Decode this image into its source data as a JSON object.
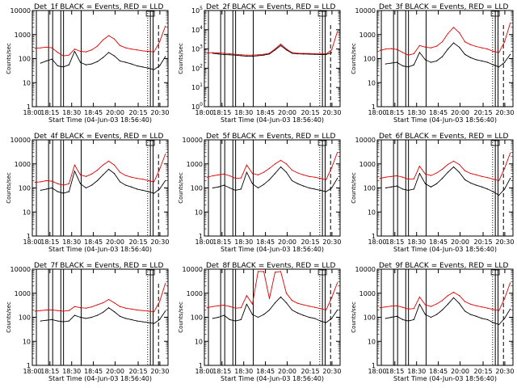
{
  "page": {
    "panel_title_suffix": "BLACK = Events, RED = LLD",
    "ylabel": "Counts/sec",
    "xlabel": "Start Time (04-Jun-03 18:56:40)",
    "x_ticks": [
      "18:00",
      "18:15",
      "18:30",
      "18:45",
      "20:00",
      "20:15",
      "20:30"
    ]
  },
  "colors": {
    "events": "#000000",
    "lld": "#e00000",
    "axes": "#000000"
  },
  "chart_data": [
    {
      "type": "line",
      "detector": "Det_1f",
      "title": "Det_1f BLACK = Events, RED = LLD",
      "xlabel": "Start Time (04-Jun-03 18:56:40)",
      "ylabel": "Counts/sec",
      "y_scale": "log",
      "ylim": [
        1,
        10000
      ],
      "y_tick_labels": [
        "1",
        "10",
        "100",
        "1000",
        "10000"
      ],
      "x_tick_labels": [
        "18:00",
        "18:15",
        "18:30",
        "18:45",
        "20:00",
        "20:15",
        "20:30"
      ],
      "series": [
        {
          "name": "Events",
          "values": [
            null,
            65,
            80,
            95,
            50,
            45,
            55,
            200,
            70,
            55,
            60,
            75,
            110,
            180,
            130,
            80,
            70,
            60,
            50,
            45,
            40,
            35,
            50,
            120
          ]
        },
        {
          "name": "LLD",
          "values": [
            270,
            280,
            300,
            280,
            180,
            130,
            140,
            250,
            200,
            190,
            230,
            330,
            600,
            900,
            650,
            350,
            280,
            250,
            230,
            210,
            200,
            190,
            500,
            2200
          ]
        }
      ]
    },
    {
      "type": "line",
      "detector": "Det_2f",
      "title": "Det_2f BLACK = Events, RED = LLD",
      "xlabel": "Start Time (04-Jun-03 18:56:40)",
      "ylabel": "Counts/sec",
      "y_scale": "log",
      "ylim": [
        1,
        100000
      ],
      "y_tick_labels": [
        "10^0",
        "10^1",
        "10^2",
        "10^3",
        "10^4",
        "10^5"
      ],
      "x_tick_labels": [
        "18:00",
        "18:15",
        "18:30",
        "18:45",
        "20:00",
        "20:15",
        "20:30"
      ],
      "series": [
        {
          "name": "Events",
          "values": [
            null,
            600,
            550,
            520,
            500,
            480,
            450,
            420,
            420,
            450,
            480,
            550,
            900,
            1500,
            900,
            600,
            560,
            550,
            540,
            530,
            520,
            520,
            650,
            null
          ]
        },
        {
          "name": "LLD",
          "values": [
            620,
            640,
            620,
            600,
            560,
            530,
            500,
            480,
            480,
            500,
            530,
            600,
            1000,
            1800,
            1000,
            650,
            600,
            590,
            580,
            570,
            560,
            560,
            900,
            8000
          ]
        }
      ]
    },
    {
      "type": "line",
      "detector": "Det_3f",
      "title": "Det_3f BLACK = Events, RED = LLD",
      "xlabel": "Start Time (04-Jun-03 18:56:40)",
      "ylabel": "Counts/sec",
      "y_scale": "log",
      "ylim": [
        1,
        10000
      ],
      "y_tick_labels": [
        "1",
        "10",
        "100",
        "1000",
        "10000"
      ],
      "x_tick_labels": [
        "18:00",
        "18:15",
        "18:30",
        "18:45",
        "20:00",
        "20:15",
        "20:30"
      ],
      "series": [
        {
          "name": "Events",
          "values": [
            null,
            60,
            65,
            70,
            50,
            45,
            55,
            180,
            90,
            70,
            80,
            120,
            250,
            450,
            300,
            150,
            110,
            90,
            80,
            70,
            55,
            45,
            70,
            150
          ]
        },
        {
          "name": "LLD",
          "values": [
            220,
            250,
            260,
            240,
            180,
            140,
            160,
            350,
            300,
            280,
            330,
            500,
            1100,
            2000,
            1200,
            500,
            380,
            320,
            280,
            250,
            200,
            180,
            500,
            3000
          ]
        }
      ]
    },
    {
      "type": "line",
      "detector": "Det_4f",
      "title": "Det_4f BLACK = Events, RED = LLD",
      "xlabel": "Start Time (04-Jun-03 18:56:40)",
      "ylabel": "Counts/sec",
      "y_scale": "log",
      "ylim": [
        1,
        10000
      ],
      "y_tick_labels": [
        "1",
        "10",
        "100",
        "1000",
        "10000"
      ],
      "x_tick_labels": [
        "18:00",
        "18:15",
        "18:30",
        "18:45",
        "20:00",
        "20:15",
        "20:30"
      ],
      "series": [
        {
          "name": "Events",
          "values": [
            null,
            80,
            90,
            100,
            70,
            60,
            70,
            500,
            150,
            100,
            130,
            200,
            350,
            600,
            400,
            180,
            130,
            110,
            90,
            80,
            70,
            60,
            90,
            200
          ]
        },
        {
          "name": "LLD",
          "values": [
            170,
            180,
            200,
            190,
            150,
            130,
            150,
            900,
            350,
            300,
            380,
            550,
            900,
            1300,
            900,
            450,
            330,
            280,
            250,
            230,
            200,
            180,
            600,
            2500
          ]
        }
      ]
    },
    {
      "type": "line",
      "detector": "Det_5f",
      "title": "Det_5f BLACK = Events, RED = LLD",
      "xlabel": "Start Time (04-Jun-03 18:56:40)",
      "ylabel": "Counts/sec",
      "y_scale": "log",
      "ylim": [
        1,
        10000
      ],
      "y_tick_labels": [
        "1",
        "10",
        "100",
        "1000",
        "10000"
      ],
      "x_tick_labels": [
        "18:00",
        "18:15",
        "18:30",
        "18:45",
        "20:00",
        "20:15",
        "20:30"
      ],
      "series": [
        {
          "name": "Events",
          "values": [
            null,
            100,
            110,
            130,
            100,
            80,
            90,
            450,
            150,
            100,
            140,
            220,
            400,
            750,
            450,
            200,
            150,
            120,
            100,
            90,
            80,
            70,
            100,
            250
          ]
        },
        {
          "name": "LLD",
          "values": [
            280,
            320,
            350,
            380,
            320,
            250,
            260,
            900,
            400,
            350,
            450,
            650,
            1000,
            1400,
            1000,
            550,
            420,
            350,
            300,
            280,
            250,
            220,
            700,
            3000
          ]
        }
      ]
    },
    {
      "type": "line",
      "detector": "Det_6f",
      "title": "Det_6f BLACK = Events, RED = LLD",
      "xlabel": "Start Time (04-Jun-03 18:56:40)",
      "ylabel": "Counts/sec",
      "y_scale": "log",
      "ylim": [
        1,
        10000
      ],
      "y_tick_labels": [
        "1",
        "10",
        "100",
        "1000",
        "10000"
      ],
      "x_tick_labels": [
        "18:00",
        "18:15",
        "18:30",
        "18:45",
        "20:00",
        "20:15",
        "20:30"
      ],
      "series": [
        {
          "name": "Events",
          "values": [
            null,
            100,
            110,
            120,
            90,
            80,
            90,
            400,
            150,
            110,
            150,
            250,
            450,
            750,
            450,
            220,
            160,
            130,
            110,
            90,
            70,
            50,
            90,
            250
          ]
        },
        {
          "name": "LLD",
          "values": [
            250,
            280,
            300,
            320,
            280,
            230,
            240,
            800,
            380,
            330,
            420,
            600,
            950,
            1300,
            950,
            520,
            400,
            350,
            300,
            270,
            230,
            200,
            650,
            2800
          ]
        }
      ]
    },
    {
      "type": "line",
      "detector": "Det_7f",
      "title": "Det_7f BLACK = Events, RED = LLD",
      "xlabel": "Start Time (04-Jun-03 18:56:40)",
      "ylabel": "Counts/sec",
      "y_scale": "log",
      "ylim": [
        1,
        10000
      ],
      "y_tick_labels": [
        "1",
        "10",
        "100",
        "1000",
        "10000"
      ],
      "x_tick_labels": [
        "18:00",
        "18:15",
        "18:30",
        "18:45",
        "20:00",
        "20:15",
        "20:30"
      ],
      "series": [
        {
          "name": "Events",
          "values": [
            null,
            70,
            75,
            80,
            70,
            65,
            70,
            120,
            100,
            90,
            100,
            120,
            160,
            250,
            170,
            110,
            90,
            80,
            70,
            65,
            60,
            55,
            80,
            180
          ]
        },
        {
          "name": "LLD",
          "values": [
            180,
            190,
            200,
            200,
            190,
            180,
            190,
            280,
            250,
            240,
            270,
            330,
            400,
            550,
            400,
            280,
            240,
            220,
            200,
            190,
            180,
            170,
            450,
            2500
          ]
        }
      ]
    },
    {
      "type": "line",
      "detector": "Det_8f",
      "title": "Det_8f BLACK = Events, RED = LLD",
      "xlabel": "Start Time (04-Jun-03 18:56:40)",
      "ylabel": "Counts/sec",
      "y_scale": "log",
      "ylim": [
        1,
        10000
      ],
      "y_tick_labels": [
        "1",
        "10",
        "100",
        "1000",
        "10000"
      ],
      "x_tick_labels": [
        "18:00",
        "18:15",
        "18:30",
        "18:45",
        "20:00",
        "20:15",
        "20:30"
      ],
      "series": [
        {
          "name": "Events",
          "values": [
            null,
            90,
            100,
            120,
            80,
            70,
            80,
            350,
            130,
            100,
            130,
            200,
            400,
            700,
            400,
            200,
            150,
            120,
            100,
            90,
            70,
            60,
            90,
            200
          ]
        },
        {
          "name": "LLD",
          "values": [
            250,
            280,
            300,
            320,
            280,
            240,
            250,
            800,
            350,
            8000,
            8000,
            600,
            7500,
            8000,
            1000,
            500,
            380,
            330,
            290,
            260,
            230,
            200,
            650,
            2700
          ]
        }
      ]
    },
    {
      "type": "line",
      "detector": "Det_9f",
      "title": "Det_9f BLACK = Events, RED = LLD",
      "xlabel": "Start Time (04-Jun-03 18:56:40)",
      "ylabel": "Counts/sec",
      "y_scale": "log",
      "ylim": [
        1,
        10000
      ],
      "y_tick_labels": [
        "1",
        "10",
        "100",
        "1000",
        "10000"
      ],
      "x_tick_labels": [
        "18:00",
        "18:15",
        "18:30",
        "18:45",
        "20:00",
        "20:15",
        "20:30"
      ],
      "series": [
        {
          "name": "Events",
          "values": [
            null,
            90,
            100,
            110,
            80,
            70,
            80,
            350,
            130,
            100,
            130,
            200,
            350,
            650,
            380,
            180,
            130,
            110,
            90,
            80,
            60,
            50,
            90,
            220
          ]
        },
        {
          "name": "LLD",
          "values": [
            250,
            270,
            290,
            300,
            260,
            220,
            230,
            700,
            330,
            280,
            360,
            500,
            800,
            1100,
            800,
            450,
            350,
            300,
            270,
            240,
            210,
            190,
            600,
            2700
          ]
        }
      ]
    }
  ]
}
